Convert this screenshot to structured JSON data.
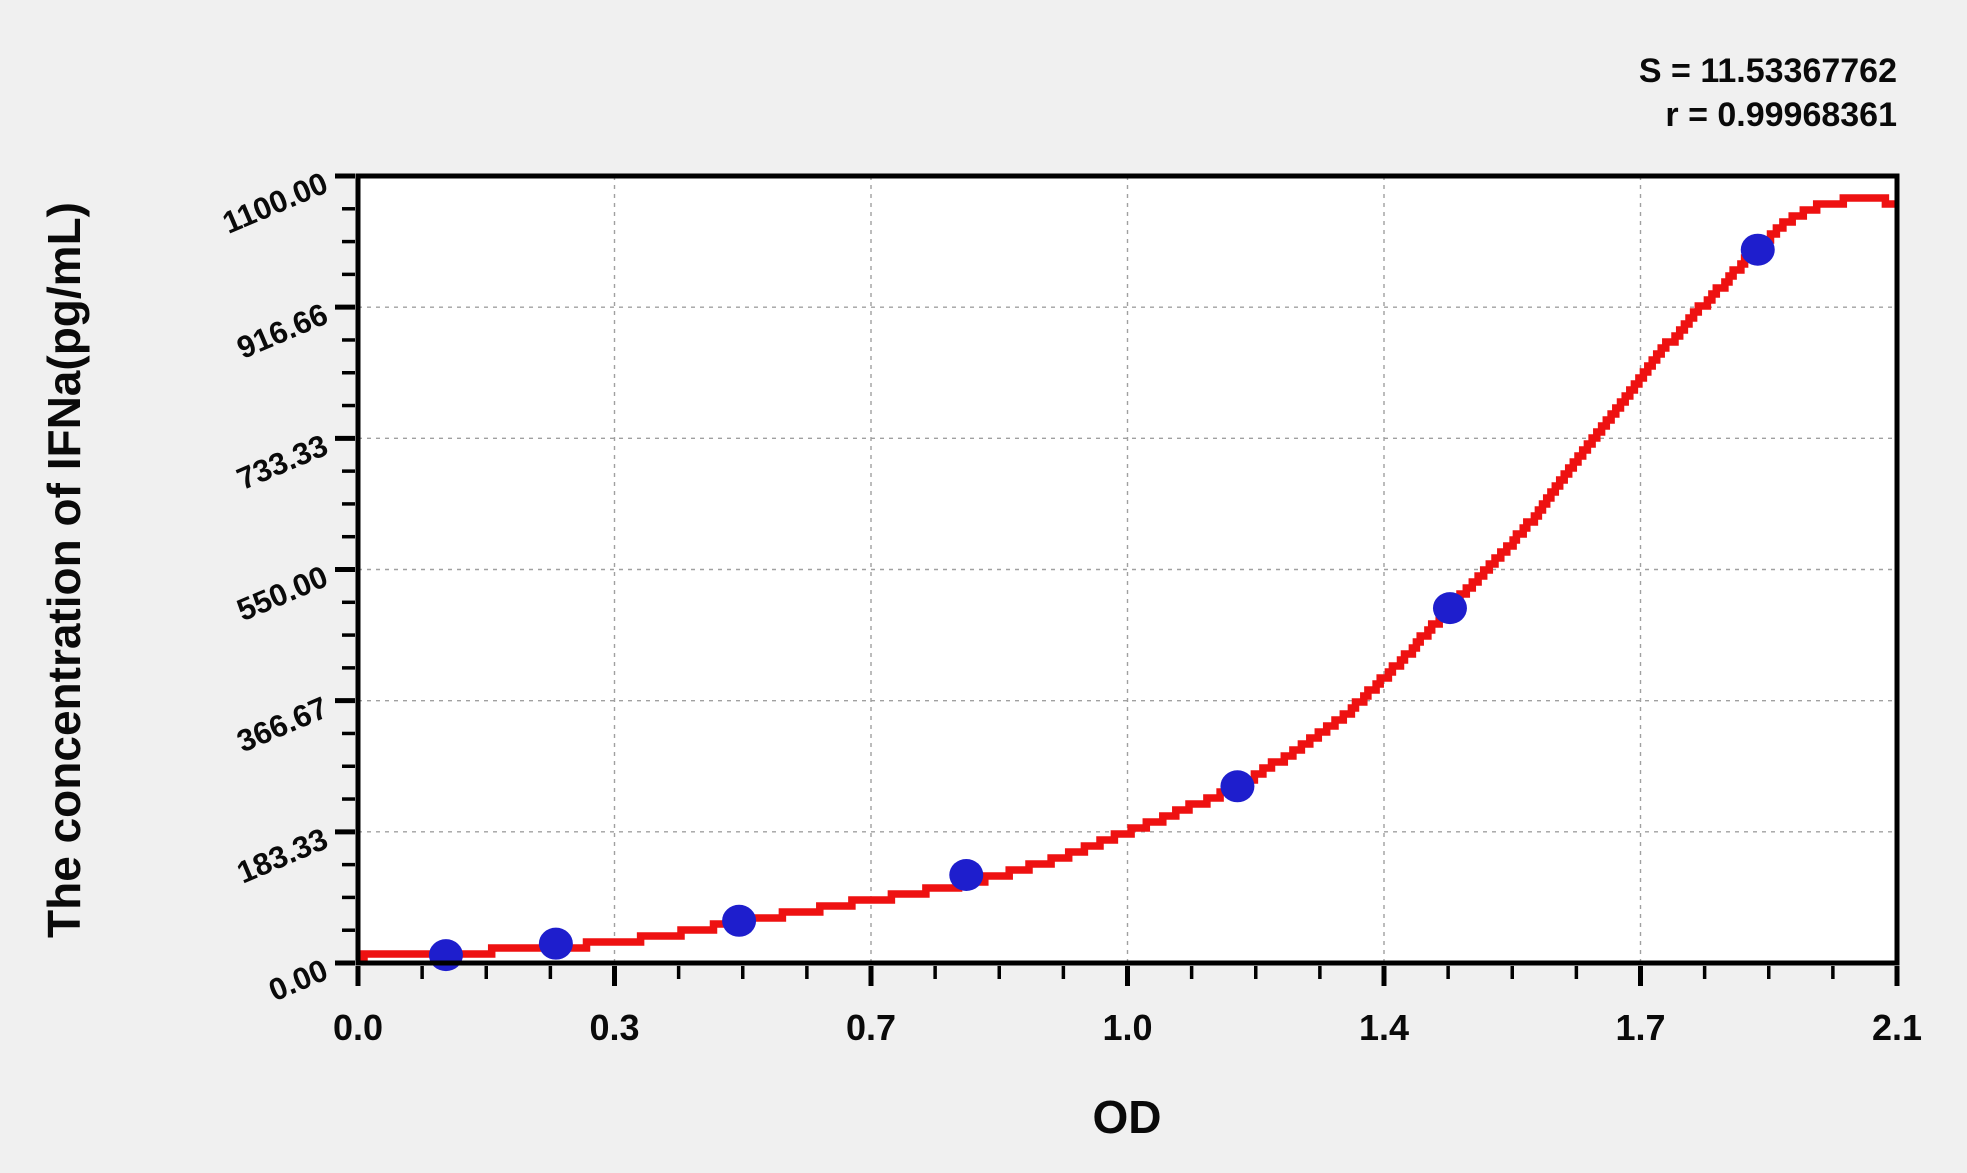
{
  "page": {
    "background_color": "#f0f0f0",
    "plot_background_color": "#ffffff"
  },
  "stats": {
    "s_label": "S = 11.53367762",
    "r_label": "r = 0.99968361"
  },
  "colors": {
    "fit_curve": "#ee1111",
    "data_point": "#1e1ecd",
    "axis": "#000000",
    "gridline": "#a0a0a0"
  },
  "chart_data": {
    "type": "scatter",
    "title": "",
    "xlabel": "OD",
    "ylabel": "The concentration of IFNa(pg/mL)",
    "xlim": [
      0,
      2.1
    ],
    "ylim": [
      0,
      1100
    ],
    "grid": "dashed gray at major ticks, plot boxed on all four sides",
    "legend": "none",
    "x_tick_values": [
      0,
      0.35,
      0.7,
      1.05,
      1.4,
      1.75,
      2.1
    ],
    "x_tick_labels": [
      "0.0",
      "0.3",
      "0.7",
      "1.0",
      "1.4",
      "1.7",
      "2.1"
    ],
    "y_tick_values": [
      0,
      183.33,
      366.67,
      550.0,
      733.33,
      916.66,
      1100.0
    ],
    "y_tick_labels": [
      "0.00",
      "183.33",
      "366.67",
      "550.00",
      "733.33",
      "916.66",
      "1100.00"
    ],
    "minor_ticks_per_interval": 3,
    "annotations": [
      "S = 11.53367762",
      "r = 0.99968361"
    ],
    "series": [
      {
        "name": "standard-points",
        "type": "scatter",
        "color": "#1e1ecd",
        "points": [
          [
            0.12,
            11
          ],
          [
            0.27,
            27
          ],
          [
            0.52,
            59
          ],
          [
            0.83,
            123
          ],
          [
            1.2,
            247
          ],
          [
            1.49,
            496
          ],
          [
            1.91,
            997
          ]
        ]
      },
      {
        "name": "fit-curve",
        "type": "line",
        "color": "#ee1111",
        "points": [
          [
            0.0,
            8
          ],
          [
            0.12,
            14
          ],
          [
            0.27,
            22
          ],
          [
            0.4,
            36
          ],
          [
            0.52,
            57
          ],
          [
            0.68,
            85
          ],
          [
            0.83,
            112
          ],
          [
            0.95,
            145
          ],
          [
            1.05,
            184
          ],
          [
            1.2,
            250
          ],
          [
            1.35,
            352
          ],
          [
            1.49,
            498
          ],
          [
            1.6,
            620
          ],
          [
            1.76,
            835
          ],
          [
            1.91,
            1000
          ],
          [
            1.97,
            1048
          ],
          [
            2.02,
            1064
          ],
          [
            2.06,
            1066
          ],
          [
            2.1,
            1064
          ]
        ]
      }
    ]
  }
}
